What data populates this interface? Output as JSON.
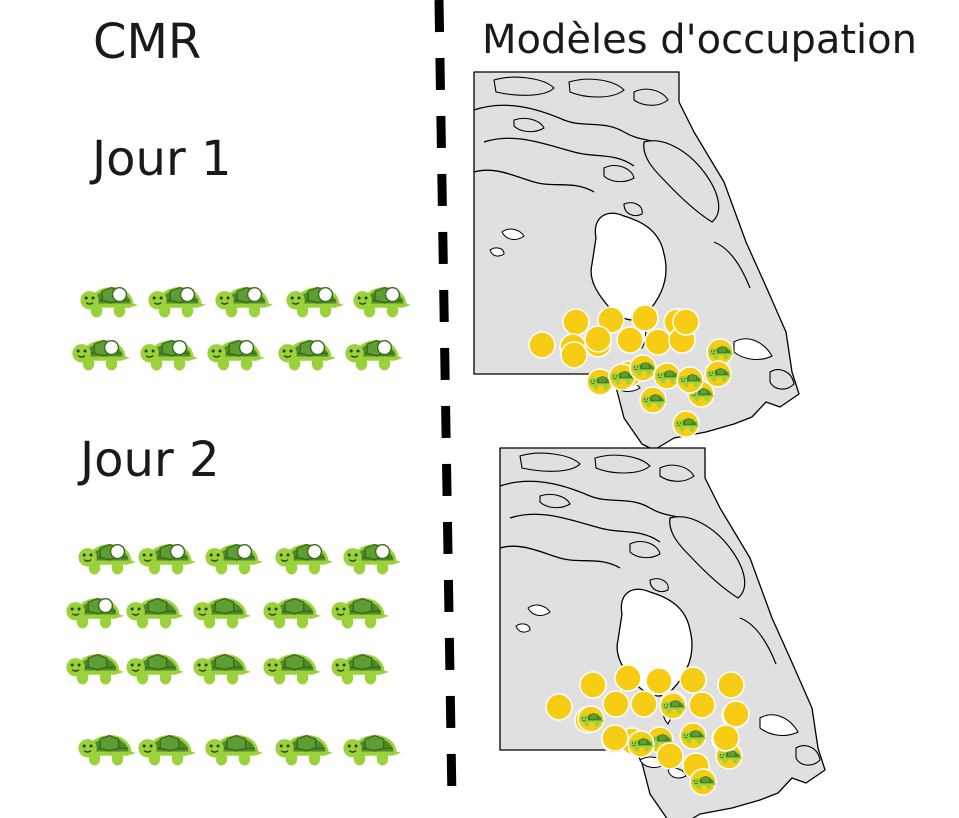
{
  "left": {
    "title": "CMR",
    "days": [
      {
        "label": "Jour 1",
        "rows": [
          {
            "marks": [
              true,
              true,
              true,
              true,
              true
            ]
          },
          {
            "marks": [
              true,
              true,
              true,
              true,
              true
            ]
          }
        ]
      },
      {
        "label": "Jour 2",
        "rows": [
          {
            "marks": [
              true,
              true,
              true,
              true,
              true
            ]
          },
          {
            "marks": [
              true,
              false,
              false,
              false,
              false
            ]
          },
          {
            "marks": [
              false,
              false,
              false,
              false,
              false
            ]
          },
          {
            "marks": [
              false,
              false,
              false,
              false,
              false
            ]
          }
        ]
      }
    ]
  },
  "right": {
    "title": "Modèles d'occupation",
    "maps": [
      {
        "occupied_sites": 10,
        "total_sites": 24
      },
      {
        "occupied_sites": 11,
        "total_sites": 27
      }
    ]
  },
  "icons": {
    "turtle": "turtle-icon",
    "mark": "paint-mark-icon",
    "site": "survey-site-icon",
    "divider": "dashed-divider-icon"
  },
  "colors": {
    "turtle_body": "#9bd23c",
    "turtle_shell": "#4f8a2a",
    "turtle_shell_dark": "#3a6b1f",
    "mark": "#ffffff",
    "site": "#f7cc14",
    "site_border": "#ffffff",
    "land": "#e0e0e0",
    "coast": "#000000",
    "text": "#1a1a1a"
  }
}
